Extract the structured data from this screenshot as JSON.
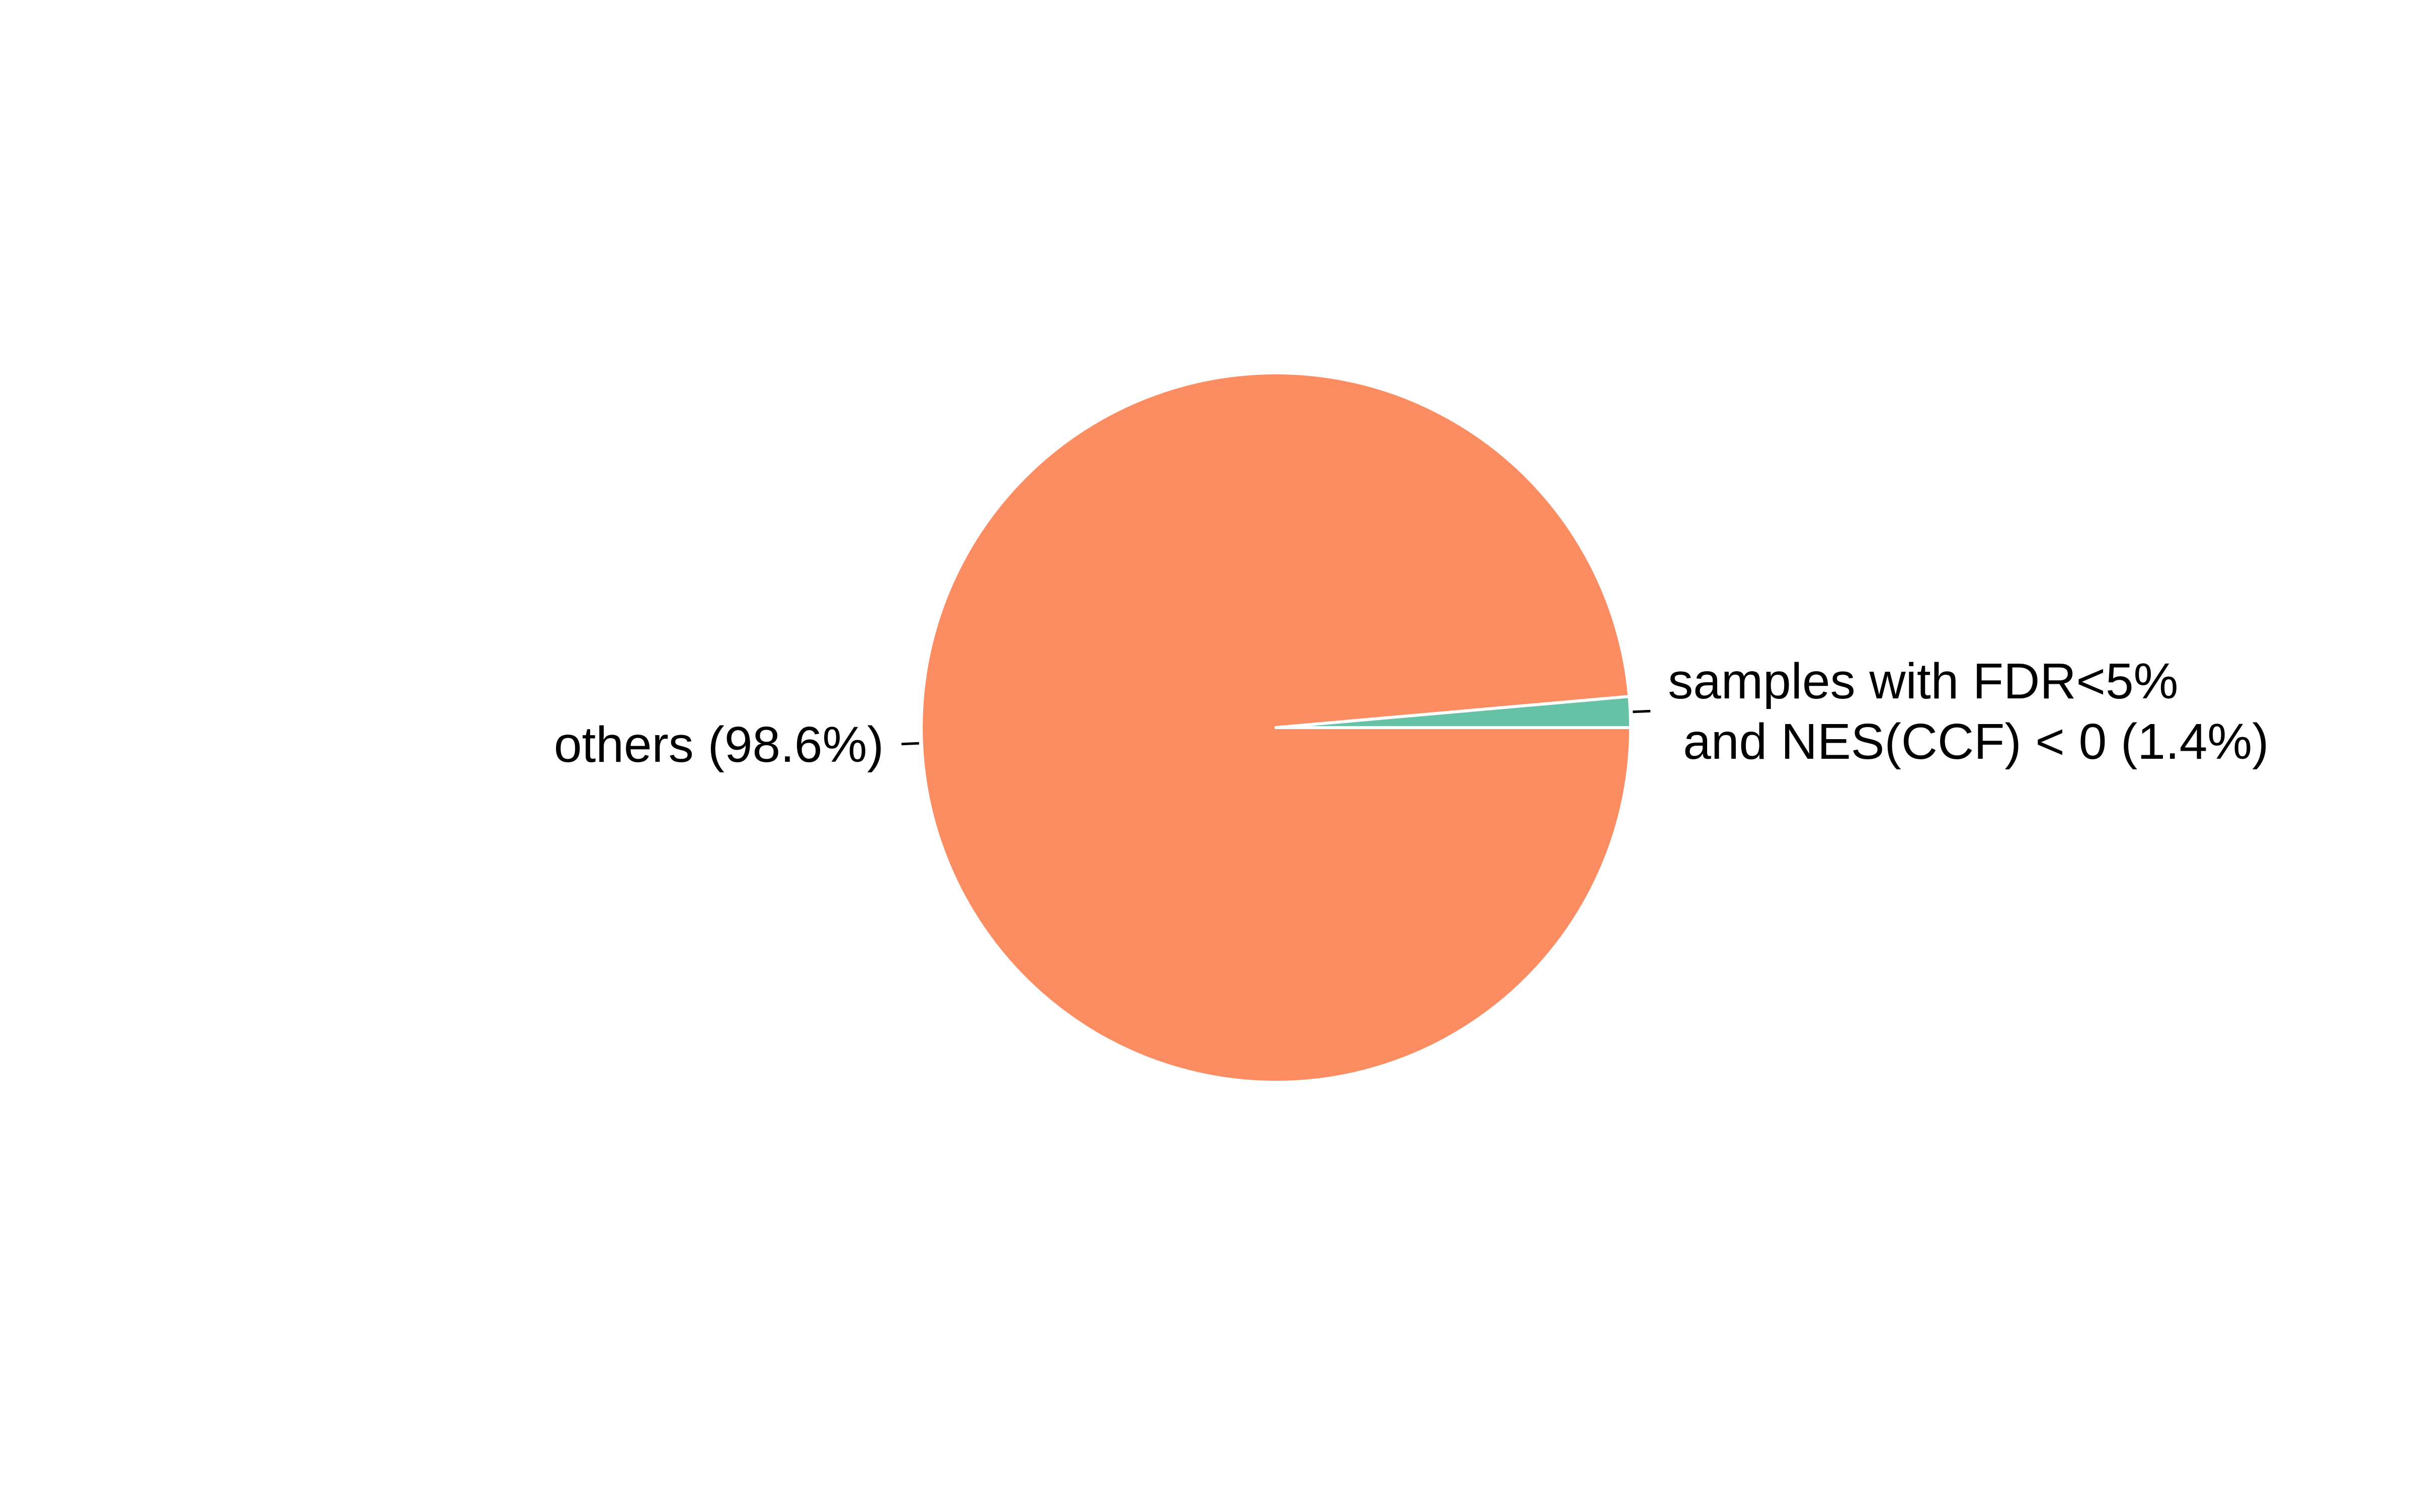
{
  "chart_data": {
    "type": "pie",
    "title": "",
    "slices": [
      {
        "label_lines": [
          "samples with FDR<5%",
          "and NES(CCF) < 0 (1.4%)"
        ],
        "value": 1.4,
        "color": "#66c2a5"
      },
      {
        "label_lines": [
          "others (98.6%)"
        ],
        "value": 98.6,
        "color": "#fc8d62"
      }
    ],
    "start": "3 o'clock",
    "direction": "counter-clockwise",
    "slice_border_color": "#ffffff",
    "legend": "none"
  }
}
